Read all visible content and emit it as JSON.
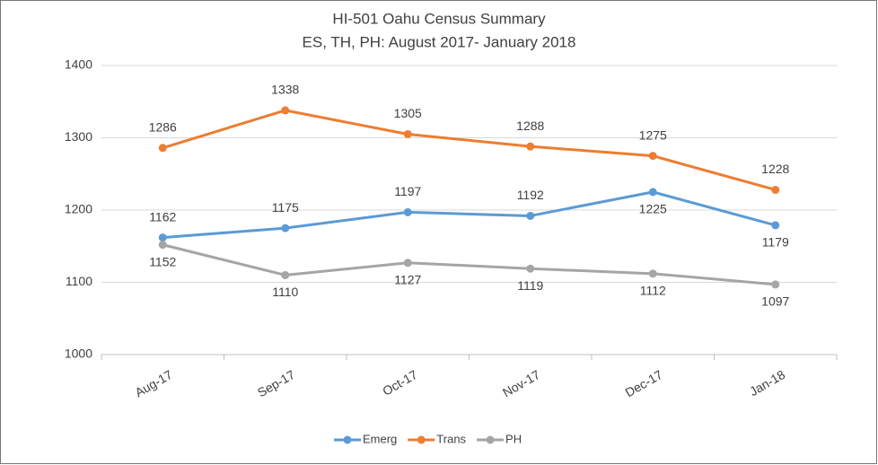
{
  "chart_data": {
    "type": "line",
    "title": "HI-501 Oahu Census Summary",
    "subtitle": "ES, TH, PH: August 2017- January 2018",
    "categories": [
      "Aug-17",
      "Sep-17",
      "Oct-17",
      "Nov-17",
      "Dec-17",
      "Jan-18"
    ],
    "series": [
      {
        "name": "Emerg",
        "color": "#5b9bd5",
        "values": [
          1162,
          1175,
          1197,
          1192,
          1225,
          1179
        ]
      },
      {
        "name": "Trans",
        "color": "#ed7d31",
        "values": [
          1286,
          1338,
          1305,
          1288,
          1275,
          1228
        ]
      },
      {
        "name": "PH",
        "color": "#a5a5a5",
        "values": [
          1152,
          1110,
          1127,
          1119,
          1112,
          1097
        ]
      }
    ],
    "ylim": [
      1000,
      1400
    ],
    "yticks": [
      1000,
      1100,
      1200,
      1300,
      1400
    ],
    "grid": true,
    "legend": "bottom"
  }
}
